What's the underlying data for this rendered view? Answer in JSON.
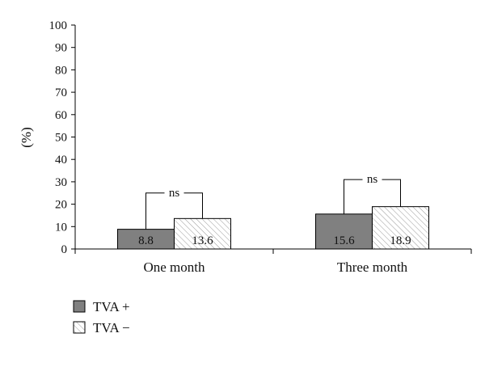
{
  "chart_data": {
    "type": "bar",
    "title": "",
    "xlabel": "",
    "ylabel": "(%)",
    "ylim": [
      0,
      100
    ],
    "yticks": [
      0,
      10,
      20,
      30,
      40,
      50,
      60,
      70,
      80,
      90,
      100
    ],
    "categories": [
      "One month",
      "Three month"
    ],
    "series": [
      {
        "name": "TVA +",
        "values": [
          8.8,
          15.6
        ],
        "data_labels": [
          "8.8",
          "15.6"
        ],
        "fill": "#808080",
        "pattern": "solid"
      },
      {
        "name": "TVA −",
        "values": [
          13.6,
          18.9
        ],
        "data_labels": [
          "13.6",
          "18.9"
        ],
        "fill": "#ffffff",
        "pattern": "diagonal-hatch"
      }
    ],
    "annotations": [
      {
        "category": "One month",
        "text": "ns",
        "bracket_y": 25
      },
      {
        "category": "Three month",
        "text": "ns",
        "bracket_y": 31
      }
    ],
    "legend_position": "bottom-left",
    "grid": false
  }
}
